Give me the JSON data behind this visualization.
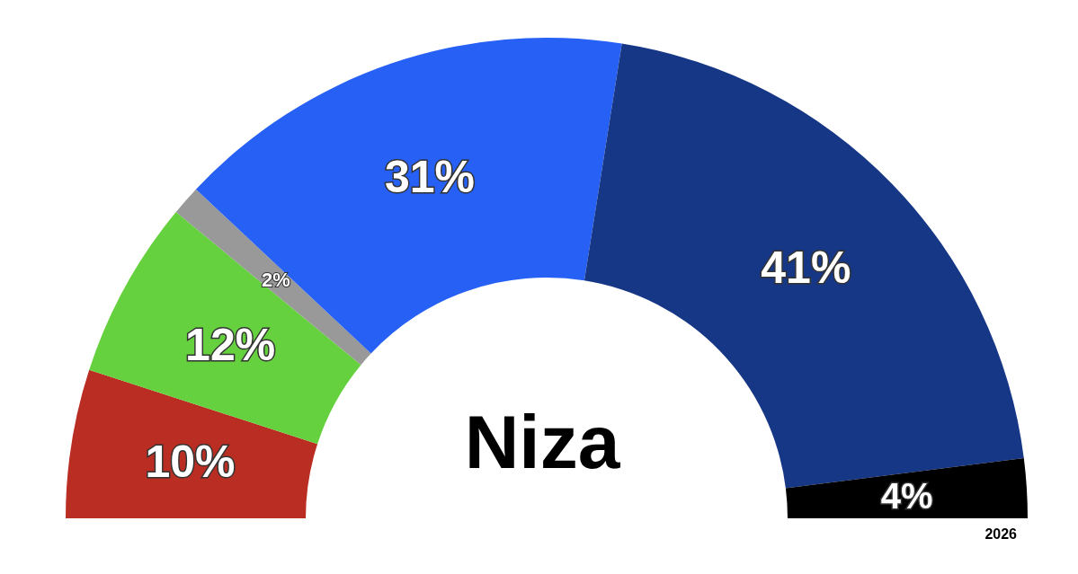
{
  "chart_data": {
    "type": "donut",
    "title": "Niza",
    "categories": [
      null,
      null,
      null,
      null,
      null,
      null
    ],
    "values": [
      10,
      12,
      2,
      31,
      41,
      4
    ],
    "colors": [
      "#b92d22",
      "#66d13e",
      "#999999",
      "#2660f5",
      "#163686",
      "#000000"
    ],
    "value_labels": [
      "10%",
      "12%",
      "2%",
      "31%",
      "41%",
      "4%"
    ],
    "annotations": [
      "2026"
    ]
  }
}
